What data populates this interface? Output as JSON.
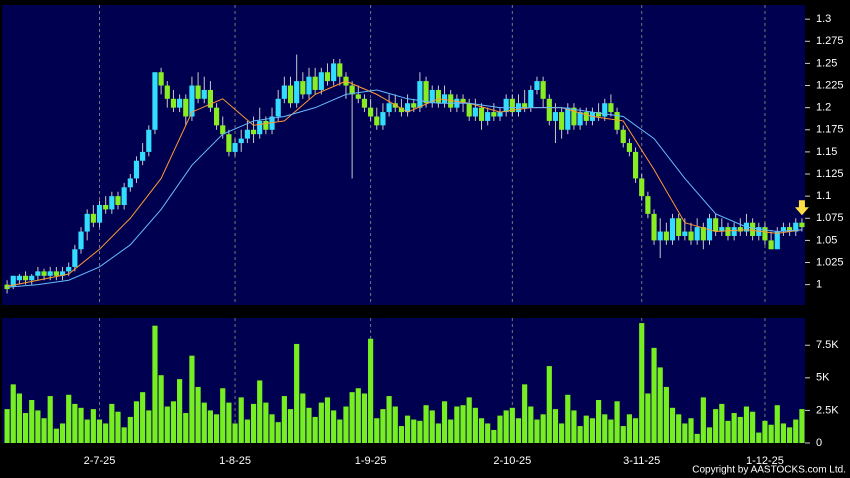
{
  "chart_data": {
    "type": "candlestick",
    "up_color": "#33ddff",
    "down_color": "#88ee22",
    "wick_color": "#c8c8c8",
    "categories": [
      null,
      null,
      null,
      null,
      null,
      null,
      null,
      null,
      null,
      null,
      null,
      null,
      null,
      null,
      null,
      "2-7-25",
      null,
      null,
      null,
      null,
      null,
      null,
      null,
      null,
      null,
      null,
      null,
      null,
      null,
      null,
      null,
      null,
      null,
      null,
      null,
      null,
      null,
      "1-8-25",
      null,
      null,
      null,
      null,
      null,
      null,
      null,
      null,
      null,
      null,
      null,
      null,
      null,
      null,
      null,
      null,
      null,
      null,
      null,
      null,
      null,
      "1-9-25",
      null,
      null,
      null,
      null,
      null,
      null,
      null,
      null,
      null,
      null,
      null,
      null,
      null,
      null,
      null,
      null,
      null,
      null,
      null,
      null,
      null,
      null,
      "2-10-25",
      null,
      null,
      null,
      null,
      null,
      null,
      null,
      null,
      null,
      null,
      null,
      null,
      null,
      null,
      null,
      null,
      null,
      null,
      null,
      null,
      "3-11-25",
      null,
      null,
      null,
      null,
      null,
      null,
      null,
      null,
      null,
      null,
      null,
      null,
      null,
      null,
      null,
      null,
      null,
      null,
      null,
      "1-12-25",
      null,
      null,
      null,
      null,
      null,
      null
    ],
    "open": [
      1.0,
      0.998,
      1.005,
      1.01,
      1.005,
      1.01,
      1.015,
      1.01,
      1.015,
      1.01,
      1.015,
      1.02,
      1.04,
      1.06,
      1.08,
      1.07,
      1.09,
      1.085,
      1.1,
      1.09,
      1.11,
      1.12,
      1.14,
      1.15,
      1.175,
      1.24,
      1.225,
      1.21,
      1.2,
      1.21,
      1.19,
      1.225,
      1.21,
      1.22,
      1.2,
      1.18,
      1.17,
      1.15,
      1.16,
      1.165,
      1.175,
      1.17,
      1.185,
      1.175,
      1.19,
      1.21,
      1.225,
      1.205,
      1.23,
      1.215,
      1.235,
      1.22,
      1.24,
      1.23,
      1.25,
      1.235,
      1.225,
      1.215,
      1.21,
      1.2,
      1.19,
      1.18,
      1.195,
      1.205,
      1.2,
      1.195,
      1.205,
      1.2,
      1.23,
      1.205,
      1.22,
      1.205,
      1.215,
      1.2,
      1.21,
      1.205,
      1.19,
      1.2,
      1.185,
      1.195,
      1.19,
      1.195,
      1.21,
      1.195,
      1.205,
      1.2,
      1.22,
      1.23,
      1.21,
      1.185,
      1.195,
      1.175,
      1.2,
      1.18,
      1.195,
      1.185,
      1.195,
      1.19,
      1.205,
      1.195,
      1.175,
      1.16,
      1.15,
      1.12,
      1.1,
      1.08,
      1.05,
      1.06,
      1.05,
      1.075,
      1.055,
      1.06,
      1.05,
      1.065,
      1.05,
      1.075,
      1.06,
      1.065,
      1.055,
      1.065,
      1.06,
      1.07,
      1.055,
      1.065,
      1.05,
      1.04,
      1.06,
      1.065,
      1.06,
      1.07
    ],
    "high": [
      1.005,
      1.01,
      1.012,
      1.015,
      1.012,
      1.02,
      1.018,
      1.02,
      1.02,
      1.02,
      1.025,
      1.045,
      1.065,
      1.085,
      1.09,
      1.095,
      1.1,
      1.105,
      1.105,
      1.115,
      1.125,
      1.145,
      1.16,
      1.18,
      1.24,
      1.245,
      1.23,
      1.22,
      1.215,
      1.215,
      1.235,
      1.24,
      1.235,
      1.23,
      1.205,
      1.19,
      1.175,
      1.165,
      1.175,
      1.185,
      1.19,
      1.2,
      1.19,
      1.2,
      1.22,
      1.235,
      1.235,
      1.26,
      1.24,
      1.245,
      1.245,
      1.245,
      1.25,
      1.255,
      1.255,
      1.24,
      1.23,
      1.225,
      1.215,
      1.21,
      1.2,
      1.205,
      1.215,
      1.215,
      1.21,
      1.215,
      1.21,
      1.24,
      1.235,
      1.225,
      1.225,
      1.225,
      1.22,
      1.215,
      1.215,
      1.21,
      1.21,
      1.205,
      1.2,
      1.205,
      1.2,
      1.215,
      1.215,
      1.215,
      1.22,
      1.225,
      1.235,
      1.235,
      1.215,
      1.205,
      1.2,
      1.205,
      1.205,
      1.2,
      1.2,
      1.2,
      1.205,
      1.21,
      1.215,
      1.2,
      1.18,
      1.165,
      1.155,
      1.125,
      1.105,
      1.085,
      1.075,
      1.07,
      1.08,
      1.08,
      1.075,
      1.07,
      1.075,
      1.07,
      1.08,
      1.08,
      1.075,
      1.07,
      1.07,
      1.075,
      1.08,
      1.075,
      1.07,
      1.07,
      1.06,
      1.065,
      1.07,
      1.07,
      1.075,
      1.075
    ],
    "low": [
      0.99,
      0.995,
      1.0,
      1.0,
      1.0,
      1.005,
      1.005,
      1.005,
      1.005,
      1.005,
      1.01,
      1.015,
      1.035,
      1.05,
      1.065,
      1.065,
      1.08,
      1.08,
      1.085,
      1.085,
      1.105,
      1.115,
      1.135,
      1.145,
      1.17,
      1.215,
      1.2,
      1.195,
      1.195,
      1.18,
      1.185,
      1.205,
      1.205,
      1.195,
      1.175,
      1.165,
      1.145,
      1.145,
      1.15,
      1.16,
      1.16,
      1.165,
      1.17,
      1.17,
      1.185,
      1.205,
      1.2,
      1.2,
      1.21,
      1.21,
      1.215,
      1.215,
      1.225,
      1.225,
      1.225,
      1.21,
      1.12,
      1.205,
      1.195,
      1.185,
      1.175,
      1.175,
      1.19,
      1.195,
      1.19,
      1.19,
      1.195,
      1.195,
      1.2,
      1.2,
      1.2,
      1.2,
      1.195,
      1.195,
      1.195,
      1.185,
      1.185,
      1.175,
      1.18,
      1.185,
      1.185,
      1.19,
      1.19,
      1.19,
      1.195,
      1.195,
      1.215,
      1.2,
      1.18,
      1.16,
      1.165,
      1.17,
      1.175,
      1.175,
      1.18,
      1.18,
      1.185,
      1.185,
      1.19,
      1.17,
      1.155,
      1.145,
      1.115,
      1.095,
      1.075,
      1.045,
      1.03,
      1.045,
      1.045,
      1.05,
      1.05,
      1.045,
      1.045,
      1.04,
      1.045,
      1.055,
      1.055,
      1.05,
      1.05,
      1.055,
      1.055,
      1.05,
      1.05,
      1.045,
      1.04,
      1.04,
      1.055,
      1.055,
      1.055,
      1.06
    ],
    "close": [
      0.995,
      1.01,
      1.01,
      1.005,
      1.01,
      1.015,
      1.01,
      1.015,
      1.01,
      1.015,
      1.02,
      1.04,
      1.06,
      1.08,
      1.07,
      1.09,
      1.085,
      1.1,
      1.09,
      1.11,
      1.12,
      1.14,
      1.15,
      1.175,
      1.24,
      1.225,
      1.21,
      1.2,
      1.21,
      1.19,
      1.225,
      1.21,
      1.22,
      1.2,
      1.18,
      1.17,
      1.15,
      1.16,
      1.165,
      1.175,
      1.17,
      1.185,
      1.175,
      1.19,
      1.21,
      1.225,
      1.205,
      1.23,
      1.215,
      1.235,
      1.22,
      1.24,
      1.23,
      1.25,
      1.235,
      1.225,
      1.215,
      1.21,
      1.2,
      1.19,
      1.18,
      1.195,
      1.205,
      1.2,
      1.195,
      1.205,
      1.2,
      1.23,
      1.205,
      1.22,
      1.205,
      1.215,
      1.2,
      1.21,
      1.205,
      1.19,
      1.2,
      1.185,
      1.195,
      1.19,
      1.195,
      1.21,
      1.195,
      1.205,
      1.2,
      1.22,
      1.23,
      1.21,
      1.185,
      1.195,
      1.175,
      1.2,
      1.18,
      1.195,
      1.185,
      1.195,
      1.19,
      1.205,
      1.195,
      1.175,
      1.16,
      1.15,
      1.12,
      1.1,
      1.08,
      1.05,
      1.06,
      1.05,
      1.075,
      1.055,
      1.06,
      1.05,
      1.065,
      1.05,
      1.075,
      1.06,
      1.065,
      1.055,
      1.065,
      1.06,
      1.07,
      1.055,
      1.065,
      1.05,
      1.04,
      1.06,
      1.065,
      1.06,
      1.07,
      1.065
    ],
    "ylim": [
      0.977,
      1.316
    ],
    "yticks": [
      1,
      1.025,
      1.05,
      1.075,
      1.1,
      1.125,
      1.15,
      1.175,
      1.2,
      1.225,
      1.25,
      1.275,
      1.3
    ],
    "lines": [
      {
        "color": "#ff9933",
        "x": [
          0,
          5,
          10,
          15,
          20,
          25,
          30,
          35,
          40,
          45,
          50,
          55,
          60,
          65,
          70,
          75,
          80,
          85,
          90,
          95,
          100,
          105,
          110,
          115,
          120,
          125,
          129
        ],
        "values": [
          0.998,
          1.005,
          1.012,
          1.04,
          1.075,
          1.12,
          1.195,
          1.21,
          1.18,
          1.185,
          1.215,
          1.23,
          1.215,
          1.195,
          1.21,
          1.205,
          1.195,
          1.2,
          1.2,
          1.19,
          1.185,
          1.13,
          1.07,
          1.06,
          1.062,
          1.058,
          1.062
        ]
      },
      {
        "color": "#66bbff",
        "x": [
          0,
          5,
          10,
          15,
          20,
          25,
          30,
          35,
          40,
          45,
          50,
          55,
          60,
          65,
          70,
          75,
          80,
          85,
          90,
          95,
          100,
          105,
          110,
          115,
          120,
          125,
          129
        ],
        "values": [
          0.997,
          1.0,
          1.005,
          1.02,
          1.045,
          1.085,
          1.135,
          1.17,
          1.185,
          1.19,
          1.2,
          1.215,
          1.22,
          1.21,
          1.205,
          1.205,
          1.2,
          1.2,
          1.2,
          1.195,
          1.19,
          1.165,
          1.12,
          1.08,
          1.065,
          1.06,
          1.062
        ]
      }
    ],
    "volume": {
      "color": "#77ee22",
      "values": [
        2600,
        4500,
        3800,
        2300,
        3300,
        2500,
        1900,
        3600,
        1100,
        1500,
        3700,
        3000,
        2700,
        1800,
        2600,
        1800,
        1500,
        3000,
        2400,
        1200,
        2000,
        3200,
        3900,
        2500,
        9000,
        5200,
        2800,
        3200,
        4900,
        2300,
        6700,
        4300,
        3100,
        2500,
        2200,
        4200,
        3100,
        1500,
        3500,
        1800,
        3000,
        4800,
        3100,
        2200,
        1600,
        3600,
        2600,
        7600,
        3800,
        2700,
        2000,
        3100,
        3500,
        2500,
        1800,
        2800,
        3900,
        4200,
        3800,
        8000,
        1900,
        2600,
        3600,
        2800,
        1300,
        2100,
        1800,
        1700,
        2900,
        2500,
        1500,
        3200,
        1800,
        2800,
        2900,
        3500,
        2700,
        1900,
        1500,
        1000,
        2100,
        2500,
        2700,
        1900,
        4500,
        2800,
        1800,
        2200,
        5900,
        2600,
        1500,
        3700,
        2500,
        1300,
        2100,
        1900,
        3300,
        2200,
        1800,
        3200,
        1300,
        2200,
        1900,
        9200,
        3800,
        7300,
        5800,
        4300,
        2700,
        2200,
        1500,
        1900,
        700,
        3500,
        1200,
        2600,
        3000,
        1700,
        2300,
        2000,
        2800,
        2400,
        800,
        1700,
        1400,
        2900,
        1500,
        1200,
        1800,
        2600
      ],
      "ylim": [
        0,
        9590
      ],
      "yticks": [
        0,
        {
          "value": 2500,
          "label": "2.5K"
        },
        {
          "value": 5000,
          "label": "5K"
        },
        {
          "value": 7500,
          "label": "7.5K"
        }
      ]
    },
    "copyright": "Copyright by AASTOCKS.com Ltd."
  }
}
